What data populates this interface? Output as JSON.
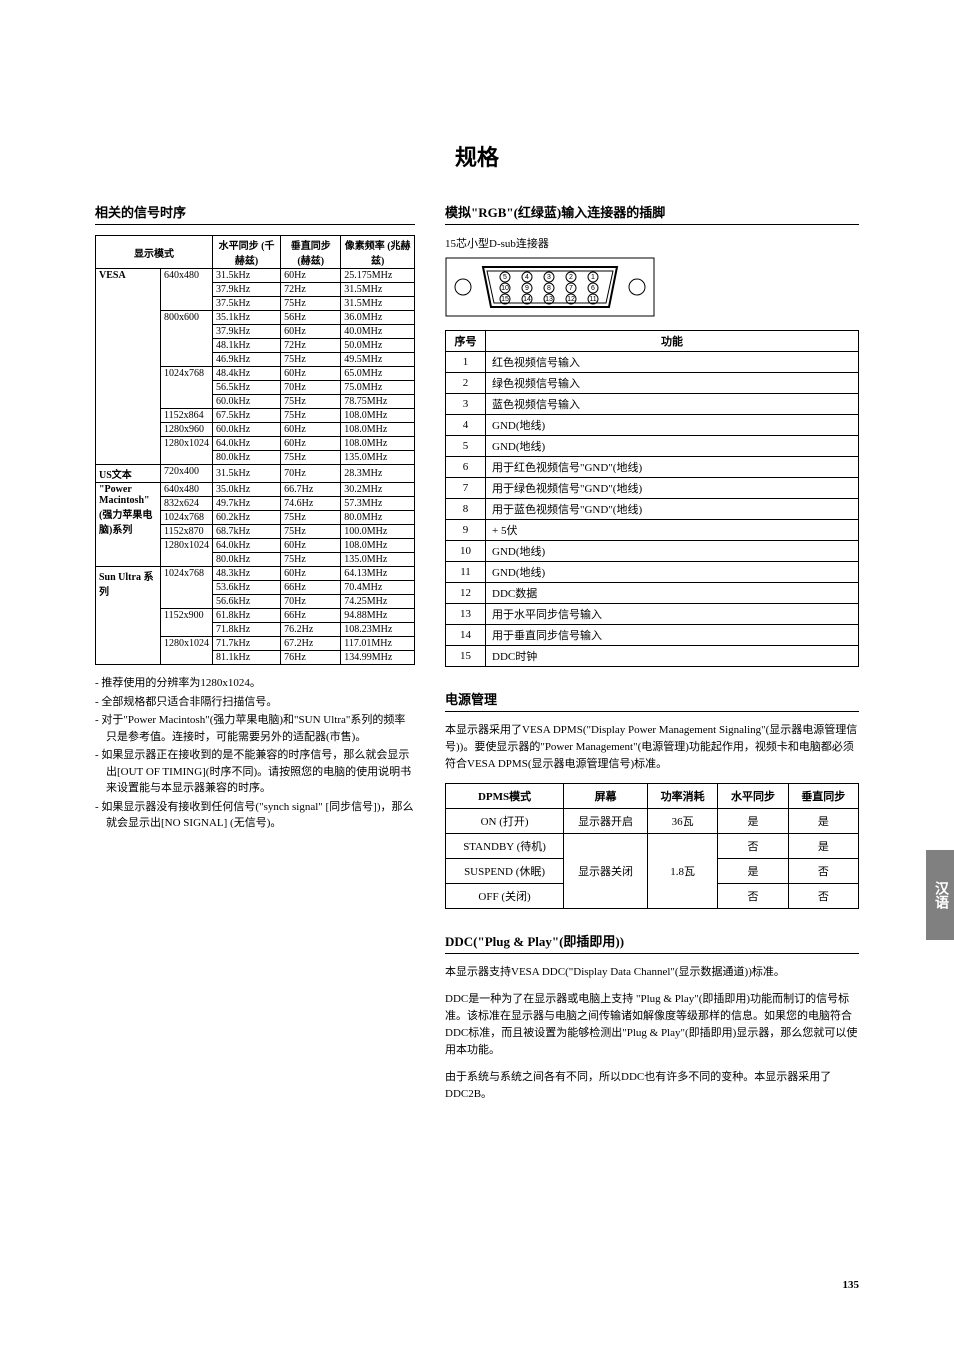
{
  "page_title": "规格",
  "page_number": "135",
  "side_tab": "汉语",
  "timing": {
    "heading": "相关的信号时序",
    "headers": {
      "mode": "显示模式",
      "hsync": "水平同步\n(千赫兹)",
      "vsync": "垂直同步\n(赫兹)",
      "pixfreq": "像素频率\n(兆赫兹)"
    },
    "groups": [
      {
        "label": "VESA",
        "rows": [
          {
            "res": "640x480",
            "h": "31.5kHz",
            "v": "60Hz",
            "p": "25.175MHz"
          },
          {
            "res": "",
            "h": "37.9kHz",
            "v": "72Hz",
            "p": "31.5MHz"
          },
          {
            "res": "",
            "h": "37.5kHz",
            "v": "75Hz",
            "p": "31.5MHz"
          },
          {
            "res": "800x600",
            "h": "35.1kHz",
            "v": "56Hz",
            "p": "36.0MHz"
          },
          {
            "res": "",
            "h": "37.9kHz",
            "v": "60Hz",
            "p": "40.0MHz"
          },
          {
            "res": "",
            "h": "48.1kHz",
            "v": "72Hz",
            "p": "50.0MHz"
          },
          {
            "res": "",
            "h": "46.9kHz",
            "v": "75Hz",
            "p": "49.5MHz"
          },
          {
            "res": "1024x768",
            "h": "48.4kHz",
            "v": "60Hz",
            "p": "65.0MHz"
          },
          {
            "res": "",
            "h": "56.5kHz",
            "v": "70Hz",
            "p": "75.0MHz"
          },
          {
            "res": "",
            "h": "60.0kHz",
            "v": "75Hz",
            "p": "78.75MHz"
          },
          {
            "res": "1152x864",
            "h": "67.5kHz",
            "v": "75Hz",
            "p": "108.0MHz"
          },
          {
            "res": "1280x960",
            "h": "60.0kHz",
            "v": "60Hz",
            "p": "108.0MHz"
          },
          {
            "res": "1280x1024",
            "h": "64.0kHz",
            "v": "60Hz",
            "p": "108.0MHz"
          },
          {
            "res": "",
            "h": "80.0kHz",
            "v": "75Hz",
            "p": "135.0MHz"
          }
        ]
      },
      {
        "label": "US文本",
        "rows": [
          {
            "res": "720x400",
            "h": "31.5kHz",
            "v": "70Hz",
            "p": "28.3MHz"
          }
        ]
      },
      {
        "label": "\"Power Macintosh\" (强力苹果电脑)系列",
        "rows": [
          {
            "res": "640x480",
            "h": "35.0kHz",
            "v": "66.7Hz",
            "p": "30.2MHz"
          },
          {
            "res": "832x624",
            "h": "49.7kHz",
            "v": "74.6Hz",
            "p": "57.3MHz"
          },
          {
            "res": "1024x768",
            "h": "60.2kHz",
            "v": "75Hz",
            "p": "80.0MHz"
          },
          {
            "res": "1152x870",
            "h": "68.7kHz",
            "v": "75Hz",
            "p": "100.0MHz"
          },
          {
            "res": "1280x1024",
            "h": "64.0kHz",
            "v": "60Hz",
            "p": "108.0MHz"
          },
          {
            "res": "",
            "h": "80.0kHz",
            "v": "75Hz",
            "p": "135.0MHz"
          }
        ]
      },
      {
        "label": "Sun Ultra 系列",
        "rows": [
          {
            "res": "1024x768",
            "h": "48.3kHz",
            "v": "60Hz",
            "p": "64.13MHz"
          },
          {
            "res": "",
            "h": "53.6kHz",
            "v": "66Hz",
            "p": "70.4MHz"
          },
          {
            "res": "",
            "h": "56.6kHz",
            "v": "70Hz",
            "p": "74.25MHz"
          },
          {
            "res": "1152x900",
            "h": "61.8kHz",
            "v": "66Hz",
            "p": "94.88MHz"
          },
          {
            "res": "",
            "h": "71.8kHz",
            "v": "76.2Hz",
            "p": "108.23MHz"
          },
          {
            "res": "1280x1024",
            "h": "71.7kHz",
            "v": "67.2Hz",
            "p": "117.01MHz"
          },
          {
            "res": "",
            "h": "81.1kHz",
            "v": "76Hz",
            "p": "134.99MHz"
          }
        ]
      }
    ],
    "notes": [
      "- 推荐使用的分辨率为1280x1024。",
      "- 全部规格都只适合非隔行扫描信号。",
      "- 对于\"Power Macintosh\"(强力苹果电脑)和\"SUN Ultra\"系列的频率只是参考值。连接时，可能需要另外的适配器(市售)。",
      "- 如果显示器正在接收到的是不能兼容的时序信号，那么就会显示出[OUT OF TIMING](时序不同)。请按照您的电脑的使用说明书来设置能与本显示器兼容的时序。",
      "- 如果显示器没有接收到任何信号(\"synch signal\" [同步信号])，那么就会显示出[NO SIGNAL] (无信号)。"
    ]
  },
  "connector": {
    "heading": "模拟\"RGB\"(红绿蓝)输入连接器的插脚",
    "caption": "15芯小型D-sub连接器",
    "pins_header": {
      "num": "序号",
      "fn": "功能"
    },
    "pins": [
      {
        "n": "1",
        "f": "红色视频信号输入"
      },
      {
        "n": "2",
        "f": "绿色视频信号输入"
      },
      {
        "n": "3",
        "f": "蓝色视频信号输入"
      },
      {
        "n": "4",
        "f": "GND(地线)"
      },
      {
        "n": "5",
        "f": "GND(地线)"
      },
      {
        "n": "6",
        "f": "用于红色视频信号\"GND\"(地线)"
      },
      {
        "n": "7",
        "f": "用于绿色视频信号\"GND\"(地线)"
      },
      {
        "n": "8",
        "f": "用于蓝色视频信号\"GND\"(地线)"
      },
      {
        "n": "9",
        "f": "+ 5伏"
      },
      {
        "n": "10",
        "f": "GND(地线)"
      },
      {
        "n": "11",
        "f": "GND(地线)"
      },
      {
        "n": "12",
        "f": "DDC数据"
      },
      {
        "n": "13",
        "f": "用于水平同步信号输入"
      },
      {
        "n": "14",
        "f": "用于垂直同步信号输入"
      },
      {
        "n": "15",
        "f": "DDC时钟"
      }
    ]
  },
  "power": {
    "heading": "电源管理",
    "body": "本显示器采用了VESA DPMS(\"Display Power Management Signaling\"(显示器电源管理信号))。要使显示器的\"Power Management\"(电源管理)功能起作用，视频卡和电脑都必须符合VESA DPMS(显示器电源管理信号)标准。",
    "headers": {
      "mode": "DPMS模式",
      "screen": "屏幕",
      "power": "功率消耗",
      "h": "水平同步",
      "v": "垂直同步"
    },
    "rows": [
      {
        "mode": "ON (打开)",
        "screen": "显示器开启",
        "power": "36瓦",
        "h": "是",
        "v": "是"
      },
      {
        "mode": "STANDBY (待机)",
        "screen": "",
        "power": "",
        "h": "否",
        "v": "是"
      },
      {
        "mode": "SUSPEND (休眠)",
        "screen": "显示器关闭",
        "power": "1.8瓦",
        "h": "是",
        "v": "否"
      },
      {
        "mode": "OFF (关闭)",
        "screen": "",
        "power": "",
        "h": "否",
        "v": "否"
      }
    ]
  },
  "ddc": {
    "heading": "DDC(\"Plug & Play\"(即插即用))",
    "body1": "本显示器支持VESA DDC(\"Display Data Channel\"(显示数据通道))标准。",
    "body2": "DDC是一种为了在显示器或电脑上支持 \"Plug & Play\"(即插即用)功能而制订的信号标准。该标准在显示器与电脑之间传输诸如解像度等级那样的信息。如果您的电脑符合DDC标准，而且被设置为能够检测出\"Plug & Play\"(即插即用)显示器，那么您就可以使用本功能。",
    "body3": "由于系统与系统之间各有不同，所以DDC也有许多不同的变种。本显示器采用了DDC2B。"
  }
}
